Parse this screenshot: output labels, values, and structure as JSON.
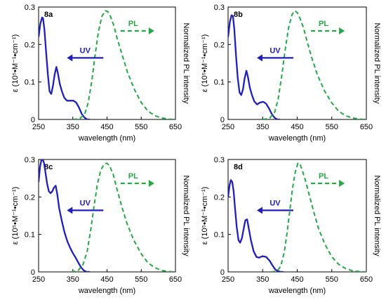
{
  "chart_data": [
    {
      "type": "line",
      "panel_label": "8a",
      "xlabel": "wavelength (nm)",
      "ylabel_left": "ε (10⁵•M⁻¹•cm⁻¹)",
      "ylabel_right": "Normalized PL intensity",
      "xlim": [
        250,
        650
      ],
      "ylim": [
        0,
        0.3
      ],
      "xticks": [
        "250",
        "350",
        "450",
        "550",
        "650"
      ],
      "yticks": [
        "0",
        "0.1",
        "0.2",
        "0.3"
      ],
      "annotations": [
        "UV",
        "PL"
      ],
      "series": [
        {
          "name": "UV",
          "color": "#1f1fbf",
          "style": "solid",
          "x": [
            250,
            255,
            260,
            263,
            267,
            272,
            277,
            282,
            287,
            292,
            297,
            302,
            306,
            312,
            318,
            325,
            333,
            342,
            352,
            360,
            368,
            376,
            384,
            392,
            400
          ],
          "y": [
            0.22,
            0.255,
            0.272,
            0.27,
            0.24,
            0.18,
            0.12,
            0.075,
            0.068,
            0.09,
            0.12,
            0.14,
            0.125,
            0.095,
            0.075,
            0.058,
            0.05,
            0.05,
            0.05,
            0.045,
            0.032,
            0.015,
            0.005,
            0.0,
            0.0
          ]
        },
        {
          "name": "PL",
          "color": "#22aa44",
          "style": "dashed",
          "x": [
            350,
            370,
            385,
            395,
            405,
            415,
            425,
            435,
            445,
            452,
            460,
            470,
            480,
            495,
            510,
            530,
            550,
            570,
            590,
            610,
            630,
            650
          ],
          "y": [
            0.0,
            0.002,
            0.015,
            0.045,
            0.1,
            0.17,
            0.235,
            0.275,
            0.29,
            0.288,
            0.275,
            0.25,
            0.215,
            0.17,
            0.125,
            0.08,
            0.045,
            0.022,
            0.01,
            0.004,
            0.001,
            0.0
          ]
        }
      ]
    },
    {
      "type": "line",
      "panel_label": "8b",
      "xlabel": "wavelength (nm)",
      "ylabel_left": "ε (10⁵•M⁻¹•cm⁻¹)",
      "ylabel_right": "Normalized PL intensity",
      "xlim": [
        250,
        650
      ],
      "ylim": [
        0,
        0.3
      ],
      "xticks": [
        "250",
        "350",
        "450",
        "550",
        "650"
      ],
      "yticks": [
        "0",
        "0.1",
        "0.2",
        "0.3"
      ],
      "annotations": [
        "UV",
        "PL"
      ],
      "series": [
        {
          "name": "UV",
          "color": "#1f1fbf",
          "style": "solid",
          "x": [
            250,
            255,
            260,
            264,
            268,
            273,
            278,
            283,
            288,
            293,
            298,
            303,
            307,
            313,
            319,
            326,
            334,
            342,
            352,
            360,
            368,
            376,
            384,
            392,
            400
          ],
          "y": [
            0.22,
            0.26,
            0.278,
            0.276,
            0.24,
            0.17,
            0.11,
            0.072,
            0.065,
            0.08,
            0.11,
            0.13,
            0.115,
            0.085,
            0.065,
            0.048,
            0.04,
            0.045,
            0.047,
            0.042,
            0.03,
            0.015,
            0.005,
            0.0,
            0.0
          ]
        },
        {
          "name": "PL",
          "color": "#22aa44",
          "style": "dashed",
          "x": [
            350,
            370,
            385,
            395,
            405,
            415,
            425,
            435,
            443,
            450,
            458,
            468,
            478,
            492,
            508,
            528,
            550,
            570,
            590,
            610,
            630,
            650
          ],
          "y": [
            0.0,
            0.003,
            0.02,
            0.055,
            0.115,
            0.185,
            0.245,
            0.28,
            0.29,
            0.285,
            0.27,
            0.245,
            0.21,
            0.165,
            0.12,
            0.078,
            0.044,
            0.022,
            0.01,
            0.004,
            0.001,
            0.0
          ]
        }
      ]
    },
    {
      "type": "line",
      "panel_label": "8c",
      "xlabel": "wavelength (nm)",
      "ylabel_left": "ε (10⁵•M⁻¹•cm⁻¹)",
      "ylabel_right": "Normalized PL intensity",
      "xlim": [
        250,
        650
      ],
      "ylim": [
        0,
        0.3
      ],
      "xticks": [
        "250",
        "350",
        "450",
        "550",
        "650"
      ],
      "yticks": [
        "0",
        "0.1",
        "0.2",
        "0.3"
      ],
      "annotations": [
        "UV",
        "PL"
      ],
      "series": [
        {
          "name": "UV",
          "color": "#1f1fbf",
          "style": "solid",
          "x": [
            250,
            254,
            258,
            262,
            266,
            270,
            275,
            280,
            285,
            290,
            295,
            300,
            305,
            310,
            318,
            326,
            334,
            342,
            350,
            358,
            366,
            374,
            382,
            390,
            400
          ],
          "y": [
            0.24,
            0.28,
            0.298,
            0.3,
            0.29,
            0.265,
            0.235,
            0.215,
            0.21,
            0.215,
            0.225,
            0.23,
            0.205,
            0.17,
            0.135,
            0.105,
            0.082,
            0.065,
            0.05,
            0.038,
            0.025,
            0.012,
            0.004,
            0.0,
            0.0
          ]
        },
        {
          "name": "PL",
          "color": "#22aa44",
          "style": "dashed",
          "x": [
            345,
            365,
            380,
            392,
            402,
            412,
            422,
            432,
            442,
            450,
            458,
            468,
            478,
            492,
            508,
            528,
            550,
            570,
            590,
            610,
            630,
            650
          ],
          "y": [
            0.0,
            0.003,
            0.02,
            0.055,
            0.11,
            0.175,
            0.235,
            0.272,
            0.288,
            0.29,
            0.282,
            0.26,
            0.225,
            0.178,
            0.13,
            0.085,
            0.048,
            0.024,
            0.011,
            0.004,
            0.001,
            0.0
          ]
        }
      ]
    },
    {
      "type": "line",
      "panel_label": "8d",
      "xlabel": "wavelength (nm)",
      "ylabel_left": "ε (10⁵•M⁻¹•cm⁻¹)",
      "ylabel_right": "Normalized PL intensity",
      "xlim": [
        250,
        650
      ],
      "ylim": [
        0,
        0.3
      ],
      "xticks": [
        "250",
        "350",
        "450",
        "550",
        "650"
      ],
      "yticks": [
        "0",
        "0.1",
        "0.2",
        "0.3"
      ],
      "annotations": [
        "UV",
        "PL"
      ],
      "series": [
        {
          "name": "UV",
          "color": "#1f1fbf",
          "style": "solid",
          "x": [
            250,
            254,
            258,
            262,
            266,
            270,
            275,
            280,
            285,
            290,
            295,
            300,
            305,
            310,
            316,
            324,
            332,
            340,
            350,
            360,
            370,
            378,
            386,
            394,
            402,
            410
          ],
          "y": [
            0.2,
            0.23,
            0.245,
            0.24,
            0.215,
            0.17,
            0.12,
            0.085,
            0.078,
            0.09,
            0.115,
            0.138,
            0.14,
            0.115,
            0.085,
            0.055,
            0.04,
            0.038,
            0.042,
            0.04,
            0.03,
            0.018,
            0.007,
            0.002,
            0.0,
            0.0
          ]
        },
        {
          "name": "PL",
          "color": "#22aa44",
          "style": "dashed",
          "x": [
            375,
            392,
            402,
            412,
            420,
            428,
            436,
            444,
            452,
            458,
            465,
            475,
            485,
            498,
            512,
            530,
            550,
            570,
            590,
            610,
            630,
            650
          ],
          "y": [
            0.0,
            0.002,
            0.015,
            0.05,
            0.1,
            0.16,
            0.22,
            0.265,
            0.29,
            0.288,
            0.27,
            0.24,
            0.205,
            0.16,
            0.115,
            0.074,
            0.04,
            0.02,
            0.009,
            0.003,
            0.001,
            0.0
          ]
        }
      ]
    }
  ]
}
